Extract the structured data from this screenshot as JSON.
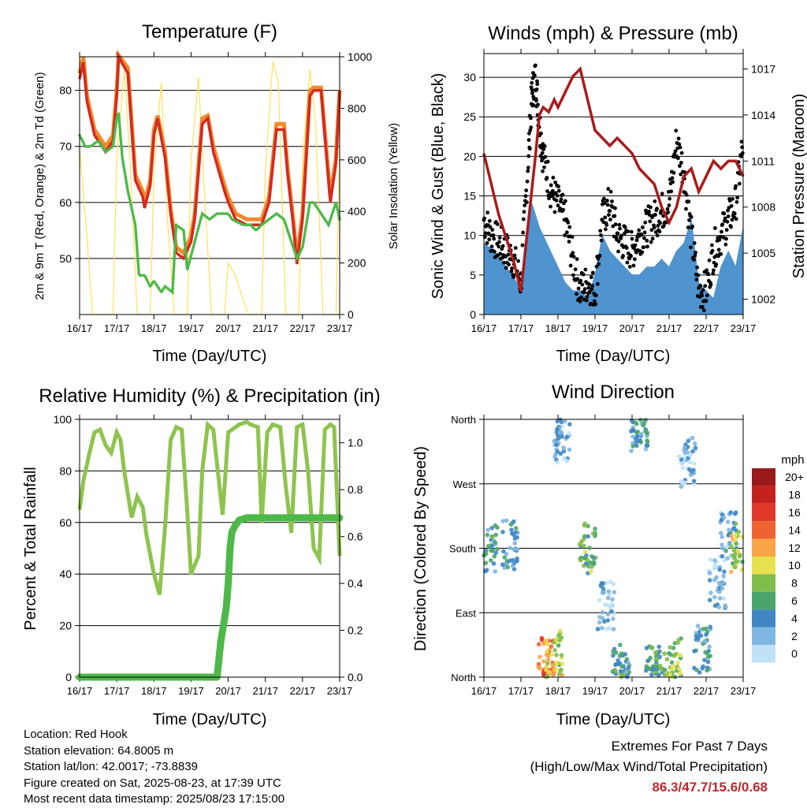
{
  "panels": {
    "temperature": {
      "title": "Temperature (F)",
      "ylabel_left": "2m & 9m T (Red, Orange) & 2m Td (Green)",
      "ylabel_right": "Solar Insolation (Yellow)",
      "xlabel": "Time (Day/UTC)"
    },
    "winds": {
      "title": "Winds (mph) & Pressure (mb)",
      "ylabel_left": "Sonic Wind & Gust (Blue, Black)",
      "ylabel_right": "Station Pressure (Maroon)",
      "xlabel": "Time (Day/UTC)"
    },
    "humidity": {
      "title": "Relative Humidity (%) & Precipitation (in)",
      "ylabel_left": "Percent & Total Rainfall",
      "xlabel": "Time (Day/UTC)"
    },
    "direction": {
      "title": "Wind Direction",
      "ylabel_left": "Direction (Colored By Speed)",
      "xlabel": "Time (Day/UTC)",
      "colorbar_title": "mph"
    }
  },
  "info": {
    "location": "Location: Red Hook",
    "elevation": "Station elevation: 64.8005 m",
    "latlon": "Station lat/lon: 42.0017; -73.8839",
    "created": "Figure created on Sat, 2025-08-23, at 17:39 UTC",
    "recent": "Most recent data timestamp: 2025/08/23 17:15:00"
  },
  "extremes": {
    "heading": "Extremes For Past 7 Days",
    "subheading": "(High/Low/Max Wind/Total Precipitation)",
    "values": "86.3/47.7/15.6/0.68"
  },
  "colors": {
    "temp2m": "#d42a20",
    "temp9m": "#f08a2c",
    "dewpoint": "#4eb848",
    "solar": "#ffe05a",
    "wind": "#4f93cf",
    "gust": "#000000",
    "pressure": "#a81c1c",
    "rh": "#8ec44e",
    "precip": "#4eb848"
  },
  "chart_data": [
    {
      "id": "temperature",
      "type": "line",
      "x_ticks": [
        "16/17",
        "17/17",
        "18/17",
        "19/17",
        "20/17",
        "21/17",
        "22/17",
        "23/17"
      ],
      "ylim": [
        40,
        86
      ],
      "y_ticks": [
        50,
        60,
        70,
        80
      ],
      "ylim_right": [
        0,
        1000
      ],
      "y_ticks_right": [
        0,
        200,
        400,
        600,
        800,
        1000
      ],
      "grid": true,
      "series": [
        {
          "name": "2m T",
          "x": [
            0,
            0.1,
            0.2,
            0.4,
            0.7,
            0.9,
            1.0,
            1.05,
            1.3,
            1.5,
            1.7,
            1.75,
            1.9,
            2.0,
            2.1,
            2.3,
            2.45,
            2.6,
            2.8,
            3.0,
            3.1,
            3.3,
            3.45,
            3.6,
            3.9,
            4.0,
            4.2,
            4.5,
            4.7,
            4.9,
            4.95,
            5.1,
            5.3,
            5.5,
            5.6,
            5.75,
            5.85,
            6.0,
            6.2,
            6.3,
            6.5,
            6.75,
            6.9,
            7.0
          ],
          "y": [
            82,
            85,
            78,
            72,
            69,
            71,
            79,
            86,
            83,
            64,
            61,
            59,
            63,
            72,
            75,
            68,
            58,
            51,
            50,
            53,
            57,
            74,
            75,
            69,
            62,
            60,
            57,
            56,
            56,
            56,
            57,
            60,
            73,
            73,
            65,
            56,
            49,
            57,
            79,
            80,
            80,
            60,
            67,
            80
          ]
        },
        {
          "name": "9m T",
          "x": [
            0,
            0.1,
            0.2,
            0.4,
            0.7,
            0.9,
            1.0,
            1.05,
            1.3,
            1.5,
            1.7,
            1.75,
            1.9,
            2.0,
            2.1,
            2.3,
            2.45,
            2.6,
            2.8,
            3.0,
            3.1,
            3.3,
            3.45,
            3.6,
            3.9,
            4.0,
            4.2,
            4.5,
            4.7,
            4.9,
            4.95,
            5.1,
            5.3,
            5.5,
            5.6,
            5.75,
            5.85,
            6.0,
            6.2,
            6.3,
            6.5,
            6.75,
            6.9,
            7.0
          ],
          "y": [
            83,
            86,
            79,
            73,
            70,
            72,
            80,
            86.3,
            84,
            65,
            62,
            60,
            64,
            73,
            75.5,
            69,
            59,
            52,
            51,
            54,
            58,
            75,
            75.5,
            70,
            63,
            61,
            58,
            57,
            57,
            57,
            58,
            61,
            74,
            74,
            66,
            57,
            50,
            58,
            80,
            80.5,
            80.5,
            61,
            68,
            80
          ]
        },
        {
          "name": "2m Td",
          "x": [
            0,
            0.15,
            0.3,
            0.5,
            0.7,
            0.9,
            1.0,
            1.05,
            1.15,
            1.3,
            1.5,
            1.6,
            1.75,
            1.9,
            2.0,
            2.2,
            2.3,
            2.5,
            2.6,
            2.8,
            2.9,
            3.1,
            3.3,
            3.5,
            3.7,
            3.9,
            4.0,
            4.1,
            4.4,
            4.6,
            4.75,
            4.9,
            5.1,
            5.3,
            5.5,
            5.7,
            5.85,
            6.0,
            6.2,
            6.3,
            6.5,
            6.7,
            6.9,
            7.0
          ],
          "y": [
            72,
            70,
            70,
            71,
            69,
            70,
            75,
            76,
            68,
            62,
            56,
            47,
            47,
            45,
            46,
            44,
            45,
            44,
            56,
            55,
            48,
            53,
            58,
            57,
            58,
            58,
            58,
            57,
            56,
            56,
            55,
            56,
            57,
            58,
            57,
            53,
            50,
            52,
            60,
            60,
            58,
            56,
            60,
            57
          ]
        },
        {
          "name": "Solar",
          "axis": "right",
          "x": [
            0,
            0.2,
            0.35,
            0.55,
            0.7,
            0.9,
            1.0,
            1.2,
            1.35,
            1.55,
            1.7,
            1.9,
            2.0,
            2.2,
            2.35,
            2.55,
            2.7,
            2.9,
            3.0,
            3.2,
            3.35,
            3.55,
            3.7,
            3.9,
            4.0,
            4.2,
            4.35,
            4.55,
            4.7,
            4.9,
            5.0,
            5.2,
            5.35,
            5.55,
            5.7,
            5.9,
            6.0,
            6.2,
            6.35,
            6.55,
            6.7,
            6.9,
            7.0
          ],
          "y": [
            650,
            300,
            0,
            0,
            0,
            0,
            600,
            950,
            620,
            0,
            0,
            0,
            550,
            900,
            400,
            0,
            0,
            0,
            600,
            920,
            500,
            0,
            0,
            0,
            200,
            150,
            80,
            0,
            0,
            0,
            550,
            980,
            900,
            0,
            0,
            0,
            600,
            950,
            750,
            0,
            0,
            0,
            650
          ]
        }
      ]
    },
    {
      "id": "winds",
      "type": "scatter",
      "x_ticks": [
        "16/17",
        "17/17",
        "18/17",
        "19/17",
        "20/17",
        "21/17",
        "22/17",
        "23/17"
      ],
      "ylim": [
        0,
        33
      ],
      "y_ticks": [
        0,
        5,
        10,
        15,
        20,
        25,
        30
      ],
      "ylim_right": [
        1001,
        1018
      ],
      "y_ticks_right": [
        1002,
        1005,
        1008,
        1011,
        1014,
        1017
      ],
      "grid": true,
      "series": [
        {
          "name": "Pressure",
          "axis": "right",
          "type": "line",
          "x": [
            0,
            0.2,
            0.4,
            0.6,
            0.8,
            1.0,
            1.2,
            1.4,
            1.5,
            1.6,
            1.75,
            1.9,
            2.0,
            2.2,
            2.4,
            2.6,
            2.8,
            3.0,
            3.2,
            3.4,
            3.6,
            3.8,
            4.0,
            4.2,
            4.4,
            4.6,
            4.8,
            5.0,
            5.2,
            5.4,
            5.6,
            5.8,
            6.0,
            6.2,
            6.4,
            6.6,
            6.8,
            7.0
          ],
          "y": [
            1011.5,
            1009.5,
            1007.5,
            1006,
            1004.5,
            1002.5,
            1007,
            1011.5,
            1014,
            1014.5,
            1014.2,
            1015,
            1014.5,
            1015.5,
            1016.5,
            1017,
            1015,
            1013,
            1012.5,
            1012,
            1012.5,
            1012,
            1011.5,
            1010.5,
            1010,
            1009.5,
            1008,
            1007,
            1008,
            1010,
            1010.5,
            1009,
            1010,
            1011,
            1010.5,
            1011,
            1011,
            1010
          ]
        },
        {
          "name": "Wind",
          "type": "area",
          "x": [
            0,
            0.3,
            0.6,
            0.9,
            1.0,
            1.1,
            1.3,
            1.5,
            1.8,
            2.0,
            2.2,
            2.4,
            2.6,
            2.8,
            3.0,
            3.2,
            3.4,
            3.6,
            3.8,
            4.0,
            4.2,
            4.4,
            4.6,
            4.8,
            5.0,
            5.2,
            5.4,
            5.6,
            5.8,
            6.0,
            6.2,
            6.4,
            6.6,
            6.8,
            7.0
          ],
          "y": [
            9,
            8,
            6,
            4,
            3,
            8,
            14,
            11,
            8,
            6,
            4,
            3,
            3,
            2,
            5,
            10,
            8,
            7,
            6,
            5,
            5,
            6,
            6,
            7,
            6,
            8,
            9,
            12,
            4,
            3,
            2,
            6,
            8,
            6,
            11
          ]
        },
        {
          "name": "Gust",
          "type": "scatter",
          "x": [
            0,
            0.2,
            0.4,
            0.6,
            0.8,
            1.0,
            1.2,
            1.3,
            1.4,
            1.5,
            1.6,
            1.8,
            2.0,
            2.2,
            2.4,
            2.6,
            2.8,
            3.0,
            3.2,
            3.4,
            3.6,
            3.8,
            4.0,
            4.2,
            4.4,
            4.6,
            4.8,
            5.0,
            5.2,
            5.4,
            5.6,
            5.8,
            6.0,
            6.2,
            6.4,
            6.6,
            6.8,
            7.0
          ],
          "y": [
            12,
            10,
            9,
            8,
            7,
            4,
            20,
            28,
            30,
            24,
            20,
            16,
            14,
            12,
            7,
            3,
            4,
            3,
            12,
            14,
            10,
            9,
            8,
            10,
            11,
            12,
            13,
            14,
            22,
            18,
            10,
            3,
            3,
            8,
            10,
            12,
            14,
            22
          ]
        }
      ]
    },
    {
      "id": "humidity",
      "type": "line",
      "x_ticks": [
        "16/17",
        "17/17",
        "18/17",
        "19/17",
        "20/17",
        "21/17",
        "22/17",
        "23/17"
      ],
      "ylim": [
        0,
        100
      ],
      "y_ticks": [
        0,
        20,
        40,
        60,
        80,
        100
      ],
      "ylim_right": [
        0,
        1.1
      ],
      "y_ticks_right": [
        0.0,
        0.2,
        0.4,
        0.6,
        0.8,
        1.0
      ],
      "grid": true,
      "series": [
        {
          "name": "RH",
          "x": [
            0,
            0.1,
            0.25,
            0.4,
            0.55,
            0.7,
            0.85,
            1.0,
            1.1,
            1.2,
            1.4,
            1.55,
            1.7,
            1.8,
            2.0,
            2.15,
            2.3,
            2.45,
            2.6,
            2.75,
            2.9,
            3.0,
            3.2,
            3.3,
            3.45,
            3.6,
            3.75,
            3.85,
            4.0,
            4.3,
            4.5,
            4.6,
            4.8,
            4.9,
            5.05,
            5.2,
            5.4,
            5.55,
            5.7,
            5.85,
            6.0,
            6.15,
            6.3,
            6.45,
            6.6,
            6.75,
            6.85,
            7.0
          ],
          "y": [
            65,
            76,
            86,
            95,
            96,
            90,
            87,
            95,
            92,
            80,
            62,
            70,
            66,
            55,
            40,
            32,
            58,
            92,
            97,
            96,
            64,
            40,
            47,
            80,
            98,
            96,
            76,
            63,
            95,
            98,
            99,
            98,
            97,
            60,
            95,
            98,
            97,
            74,
            56,
            97,
            98,
            80,
            50,
            46,
            96,
            98,
            97,
            47
          ]
        },
        {
          "name": "Precip",
          "axis": "right",
          "x": [
            0,
            1,
            2,
            3,
            3.7,
            3.8,
            3.9,
            3.95,
            4.0,
            4.05,
            4.1,
            4.2,
            4.3,
            4.5,
            4.8,
            5.2,
            5.6,
            6.0,
            6.5,
            7.0
          ],
          "y": [
            0,
            0,
            0,
            0,
            0,
            0.15,
            0.25,
            0.3,
            0.4,
            0.55,
            0.62,
            0.65,
            0.67,
            0.68,
            0.68,
            0.68,
            0.68,
            0.68,
            0.68,
            0.68
          ]
        }
      ]
    },
    {
      "id": "direction",
      "type": "scatter",
      "x_ticks": [
        "16/17",
        "17/17",
        "18/17",
        "19/17",
        "20/17",
        "21/17",
        "22/17",
        "23/17"
      ],
      "y_ticks": [
        "North",
        "East",
        "South",
        "West",
        "North"
      ],
      "ylim": [
        0,
        360
      ],
      "grid": true,
      "colorbar": {
        "title": "mph",
        "labels": [
          "20+",
          "18",
          "16",
          "14",
          "12",
          "10",
          "8",
          "6",
          "4",
          "2",
          "0"
        ],
        "colors": [
          "#9a1a1a",
          "#c4211f",
          "#e0382a",
          "#ef6232",
          "#f9a548",
          "#e6e14f",
          "#7fbd4d",
          "#4aa56a",
          "#3f86c2",
          "#7fb6e2",
          "#bfe2f6"
        ]
      },
      "clusters": [
        {
          "x": 0.15,
          "y": 180,
          "speed": 5
        },
        {
          "x": 0.7,
          "y": 185,
          "speed": 4
        },
        {
          "x": 1.7,
          "y": 20,
          "speed": 14
        },
        {
          "x": 1.9,
          "y": 30,
          "speed": 9
        },
        {
          "x": 2.1,
          "y": 330,
          "speed": 2
        },
        {
          "x": 2.8,
          "y": 180,
          "speed": 7
        },
        {
          "x": 3.3,
          "y": 100,
          "speed": 2
        },
        {
          "x": 3.7,
          "y": 10,
          "speed": 5
        },
        {
          "x": 4.2,
          "y": 350,
          "speed": 4
        },
        {
          "x": 4.6,
          "y": 10,
          "speed": 6
        },
        {
          "x": 5.1,
          "y": 20,
          "speed": 8
        },
        {
          "x": 5.5,
          "y": 300,
          "speed": 2
        },
        {
          "x": 5.9,
          "y": 40,
          "speed": 4
        },
        {
          "x": 6.3,
          "y": 130,
          "speed": 2
        },
        {
          "x": 6.6,
          "y": 200,
          "speed": 3
        },
        {
          "x": 6.9,
          "y": 180,
          "speed": 9
        }
      ]
    }
  ]
}
